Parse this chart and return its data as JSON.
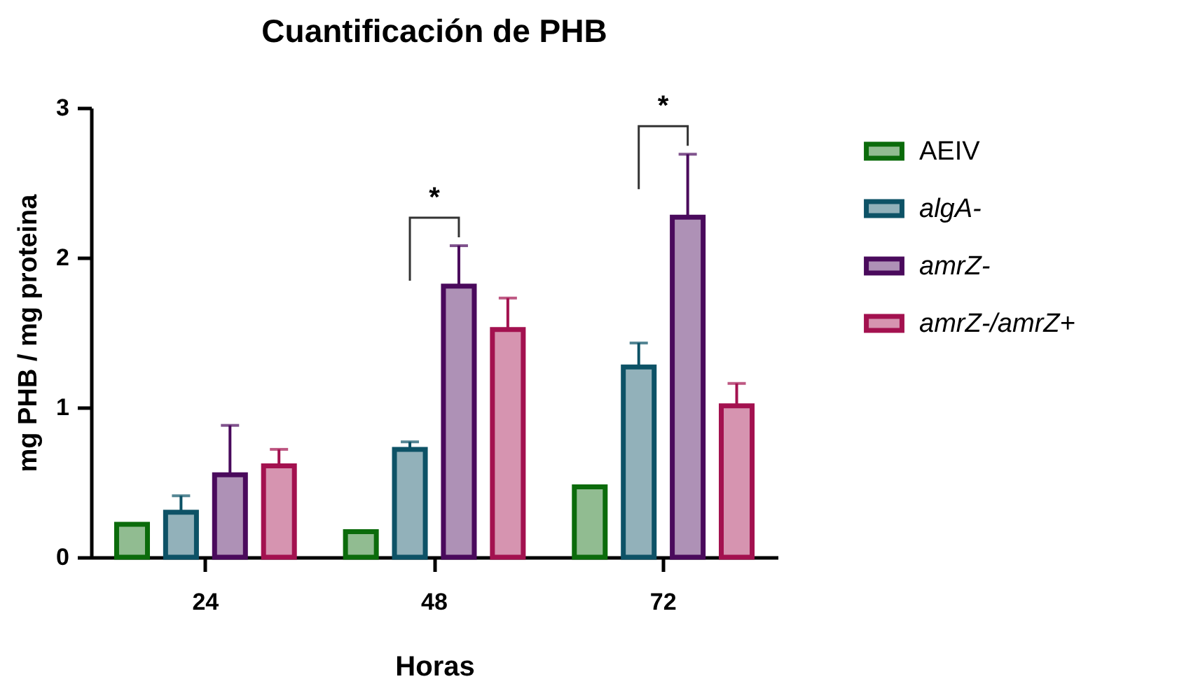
{
  "chart_data": {
    "type": "bar",
    "title": "Cuantificación de PHB",
    "xlabel": "Horas",
    "ylabel": "mg PHB / mg proteina",
    "categories": [
      "24",
      "48",
      "72"
    ],
    "series": [
      {
        "name": "AEIV",
        "color": "#0b6b0b",
        "values": [
          0.22,
          0.17,
          0.47
        ],
        "errors": [
          null,
          null,
          null
        ]
      },
      {
        "name": "algA-",
        "color": "#0d5266",
        "values": [
          0.3,
          0.72,
          1.27
        ],
        "errors": [
          [
            0.3,
            0.41
          ],
          [
            0.72,
            0.77
          ],
          [
            1.27,
            1.43
          ]
        ]
      },
      {
        "name": "amrZ-",
        "color": "#4a0a5c",
        "values": [
          0.55,
          1.81,
          2.27
        ],
        "errors": [
          [
            0.55,
            0.88
          ],
          [
            1.81,
            2.08
          ],
          [
            2.27,
            2.69
          ]
        ]
      },
      {
        "name": "amrZ-/amrZ+",
        "color": "#a3114f",
        "values": [
          0.61,
          1.52,
          1.01
        ],
        "errors": [
          [
            0.61,
            0.72
          ],
          [
            1.52,
            1.73
          ],
          [
            1.01,
            1.16
          ]
        ]
      }
    ],
    "ylim": [
      0,
      3
    ],
    "yticks": [
      0,
      1,
      2,
      3
    ],
    "grid": false,
    "legend": "right",
    "annotations": [
      "*",
      "*"
    ]
  }
}
